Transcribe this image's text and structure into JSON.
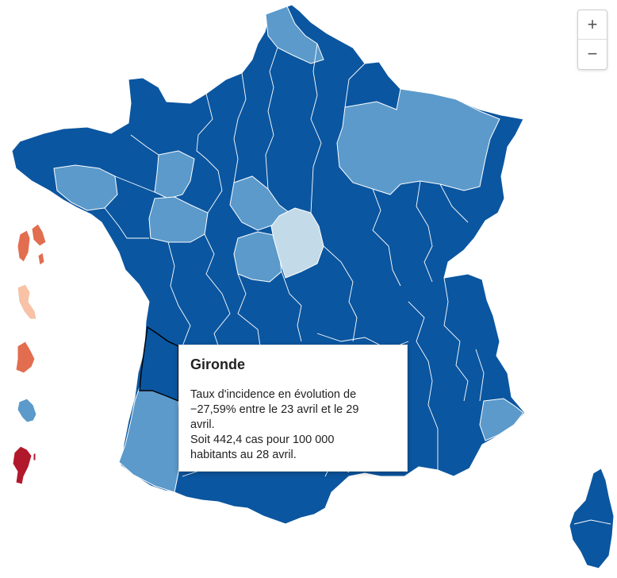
{
  "colors": {
    "dark_blue": "#0b56a0",
    "mid_blue": "#5b9acb",
    "pale_blue": "#c3dae9",
    "orange": "#e26d4f",
    "peach": "#f7c2a6",
    "dark_red": "#b2182b",
    "border": "#ffffff"
  },
  "zoom": {
    "in_icon": "+",
    "out_icon": "−"
  },
  "tooltip": {
    "title": "Gironde",
    "line1": "Taux d'incidence en évolution de",
    "line2": "−27,59% entre le 23 avril et le 29",
    "line3": "avril.",
    "line4": "Soit 442,4 cas pour 100 000",
    "line5": "habitants au 28 avril."
  },
  "regions": [
    {
      "name": "france-mainland",
      "category": "dark_blue"
    },
    {
      "name": "nord-region",
      "category": "mid_blue"
    },
    {
      "name": "grand-est-region",
      "category": "mid_blue"
    },
    {
      "name": "bourgogne-region",
      "category": "mid_blue"
    },
    {
      "name": "cote-d-or-region",
      "category": "mid_blue"
    },
    {
      "name": "finistere-region",
      "category": "mid_blue"
    },
    {
      "name": "mayenne-region",
      "category": "mid_blue"
    },
    {
      "name": "sarthe-region",
      "category": "mid_blue"
    },
    {
      "name": "loiret-region",
      "category": "mid_blue"
    },
    {
      "name": "indre-region",
      "category": "mid_blue"
    },
    {
      "name": "cher-region",
      "category": "pale_blue"
    },
    {
      "name": "landes-region",
      "category": "mid_blue"
    },
    {
      "name": "alpes-maritimes-region",
      "category": "mid_blue"
    },
    {
      "name": "gironde-region",
      "category": "dark_blue"
    },
    {
      "name": "corsica",
      "category": "dark_blue"
    },
    {
      "name": "guadeloupe",
      "category": "orange"
    },
    {
      "name": "martinique",
      "category": "peach"
    },
    {
      "name": "guyane",
      "category": "orange"
    },
    {
      "name": "mayotte",
      "category": "mid_blue"
    },
    {
      "name": "reunion",
      "category": "dark_red"
    }
  ]
}
